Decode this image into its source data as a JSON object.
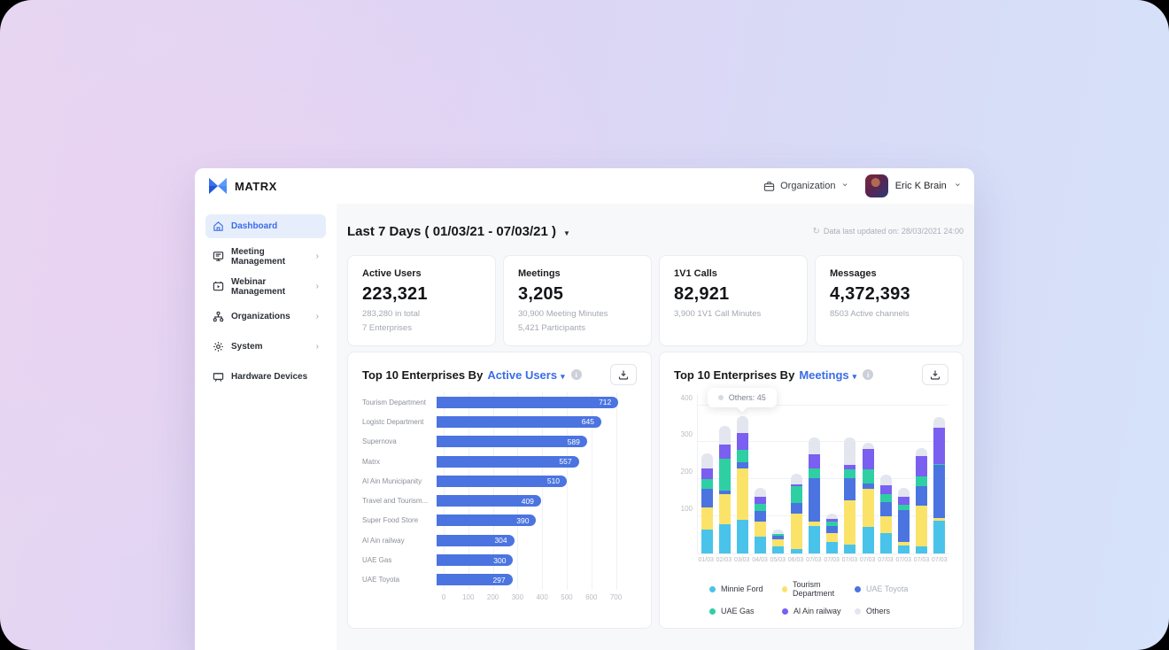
{
  "topbar": {
    "brand": "MATRX",
    "org_selector": "Organization",
    "user_name": "Eric K Brain"
  },
  "sidebar": {
    "items": [
      {
        "label": "Dashboard",
        "active": true,
        "has_chevron": false
      },
      {
        "label": "Meeting Management",
        "active": false,
        "has_chevron": true
      },
      {
        "label": "Webinar Management",
        "active": false,
        "has_chevron": true
      },
      {
        "label": "Organizations",
        "active": false,
        "has_chevron": true
      },
      {
        "label": "System",
        "active": false,
        "has_chevron": true
      },
      {
        "label": "Hardware Devices",
        "active": false,
        "has_chevron": false
      }
    ]
  },
  "main": {
    "period_title": "Last 7 Days ( 01/03/21 - 07/03/21 )",
    "last_updated": "Data last updated on: 28/03/2021  24:00",
    "stat_cards": [
      {
        "title": "Active Users",
        "value": "223,321",
        "lines": [
          "283,280 in total",
          "7 Enterprises"
        ]
      },
      {
        "title": "Meetings",
        "value": "3,205",
        "lines": [
          "30,900 Meeting Minutes",
          "5,421 Participants"
        ]
      },
      {
        "title": "1V1 Calls",
        "value": "82,921",
        "lines": [
          "3,900 1V1 Call Minutes"
        ]
      },
      {
        "title": "Messages",
        "value": "4,372,393",
        "lines": [
          "8503 Active channels"
        ]
      }
    ]
  },
  "chart_data": [
    {
      "type": "bar",
      "orientation": "horizontal",
      "title_prefix": "Top 10 Enterprises By",
      "metric_selector": "Active Users",
      "categories": [
        "Tourism Department",
        "Logistc Department",
        "Supernova",
        "Matrx",
        "Al Ain Municipanity",
        "Travel and Tourism...",
        "Super Food Store",
        "Al Ain railway",
        "UAE Gas",
        "UAE Toyota"
      ],
      "values": [
        712,
        645,
        589,
        557,
        510,
        409,
        390,
        304,
        300,
        297
      ],
      "xticks": [
        0,
        100,
        200,
        300,
        400,
        500,
        600,
        700
      ],
      "xmax": 770,
      "bar_color": "#4b74e0",
      "grid": true,
      "legend_position": "none"
    },
    {
      "type": "bar",
      "orientation": "vertical",
      "stacked": true,
      "title_prefix": "Top 10 Enterprises By",
      "metric_selector": "Meetings",
      "categories": [
        "01/03",
        "02/03",
        "03/03",
        "04/03",
        "05/03",
        "06/03",
        "07/03",
        "07/03",
        "07/03",
        "07/03",
        "07/03",
        "07/03",
        "07/03",
        "07/03"
      ],
      "series": [
        {
          "name": "Minnie Ford",
          "color": "#49c3ea",
          "values": [
            65,
            80,
            90,
            45,
            18,
            12,
            75,
            30,
            25,
            72,
            55,
            22,
            18,
            88
          ]
        },
        {
          "name": "Tourism Department",
          "color": "#fbe36a",
          "values": [
            60,
            80,
            140,
            40,
            20,
            95,
            12,
            25,
            118,
            103,
            45,
            10,
            112,
            8
          ]
        },
        {
          "name": "UAE Toyota",
          "color": "#4b74e0",
          "values": [
            50,
            10,
            15,
            30,
            10,
            30,
            115,
            20,
            60,
            15,
            38,
            85,
            52,
            142
          ]
        },
        {
          "name": "UAE Gas",
          "color": "#2fcfa4",
          "values": [
            25,
            85,
            35,
            20,
            5,
            45,
            28,
            10,
            25,
            38,
            22,
            15,
            25,
            4
          ]
        },
        {
          "name": "Al Ain railway",
          "color": "#7a5ff0",
          "values": [
            30,
            40,
            45,
            18,
            0,
            5,
            38,
            8,
            10,
            55,
            25,
            20,
            57,
            97
          ]
        },
        {
          "name": "Others",
          "color": "#e3e6ef",
          "values": [
            40,
            50,
            45,
            25,
            12,
            28,
            45,
            15,
            75,
            15,
            28,
            25,
            20,
            28
          ]
        }
      ],
      "yticks": [
        100,
        200,
        300,
        400
      ],
      "ymax": 430,
      "ylim": [
        0,
        430
      ],
      "grid": true,
      "tooltip": {
        "text": "Others: 45",
        "bar_index": 2
      },
      "legend_position": "bottom",
      "legend": [
        {
          "name": "Minnie Ford",
          "color": "#49c3ea",
          "muted": false
        },
        {
          "name": "Tourism Department",
          "color": "#fbe36a",
          "muted": false
        },
        {
          "name": "UAE Toyota",
          "color": "#4b74e0",
          "muted": true
        },
        {
          "name": "UAE Gas",
          "color": "#2fcfa4",
          "muted": false
        },
        {
          "name": "Al Ain railway",
          "color": "#7a5ff0",
          "muted": false
        },
        {
          "name": "Others",
          "color": "#e3e6ef",
          "muted": false
        }
      ]
    }
  ],
  "colors": {
    "accent_blue": "#3a6ce8",
    "bar_blue": "#4b74e0",
    "sidebar_active_bg": "#e7eefb",
    "main_bg": "#f7f8fa",
    "muted_text": "#a3a8b1"
  }
}
